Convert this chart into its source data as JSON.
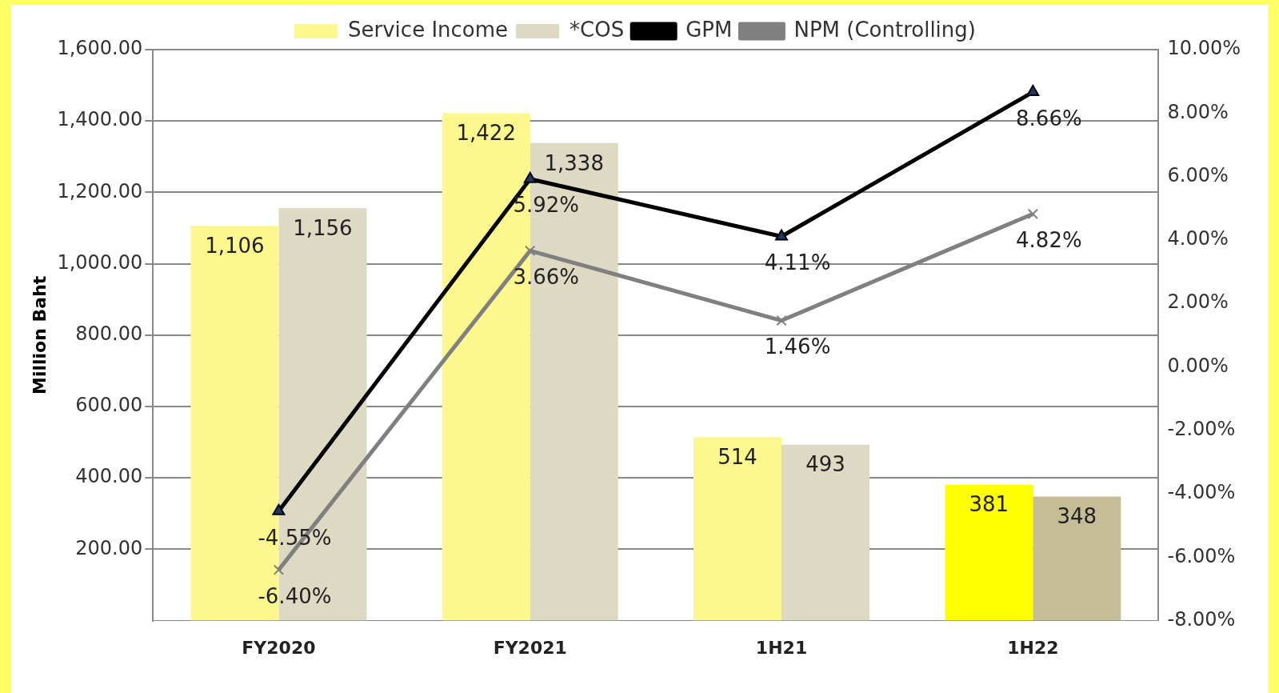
{
  "chart_data": {
    "type": "bar",
    "ylabel": "Million Baht",
    "categories": [
      "FY2020",
      "FY2021",
      "1H21",
      "1H22"
    ],
    "series": [
      {
        "name": "Service Income",
        "colors": [
          "#fdf88e",
          "#fdf88e",
          "#fdf88e",
          "#ffff00"
        ],
        "values": [
          1106,
          1422,
          514,
          381
        ],
        "value_labels": [
          "1,106",
          "1,422",
          "514",
          "381"
        ]
      },
      {
        "name": "*COS",
        "colors": [
          "#ddd9c3",
          "#ddd9c3",
          "#ddd9c3",
          "#c4bd97"
        ],
        "values": [
          1156,
          1338,
          493,
          348
        ],
        "value_labels": [
          "1,156",
          "1,338",
          "493",
          "348"
        ]
      },
      {
        "name": "GPM",
        "type": "line",
        "axis": "y2",
        "color": "#000000",
        "marker": "triangle",
        "values": [
          -4.55,
          5.92,
          4.11,
          8.66
        ],
        "value_labels": [
          "-4.55%",
          "5.92%",
          "4.11%",
          "8.66%"
        ]
      },
      {
        "name": "NPM (Controlling)",
        "type": "line",
        "axis": "y2",
        "color": "#808080",
        "marker": "cross",
        "values": [
          -6.4,
          3.66,
          1.46,
          4.82
        ],
        "value_labels": [
          "-6.40%",
          "3.66%",
          "1.46%",
          "4.82%"
        ]
      }
    ],
    "ylim": [
      0,
      1600
    ],
    "yticks": [
      {
        "value": 200,
        "label": "200.00"
      },
      {
        "value": 400,
        "label": "400.00"
      },
      {
        "value": 600,
        "label": "600.00"
      },
      {
        "value": 800,
        "label": "800.00"
      },
      {
        "value": 1000,
        "label": "1,000.00"
      },
      {
        "value": 1200,
        "label": "1,200.00"
      },
      {
        "value": 1400,
        "label": "1,400.00"
      },
      {
        "value": 1600,
        "label": "1,600.00"
      }
    ],
    "y2lim": [
      -8,
      10
    ],
    "y2ticks": [
      {
        "value": -8,
        "label": "-8.00%"
      },
      {
        "value": -6,
        "label": "-6.00%"
      },
      {
        "value": -4,
        "label": "-4.00%"
      },
      {
        "value": -2,
        "label": "-2.00%"
      },
      {
        "value": 0,
        "label": "0.00%"
      },
      {
        "value": 2,
        "label": "2.00%"
      },
      {
        "value": 4,
        "label": "4.00%"
      },
      {
        "value": 6,
        "label": "6.00%"
      },
      {
        "value": 8,
        "label": "8.00%"
      },
      {
        "value": 10,
        "label": "10.00%"
      }
    ],
    "grid": "y",
    "legend": "top"
  }
}
